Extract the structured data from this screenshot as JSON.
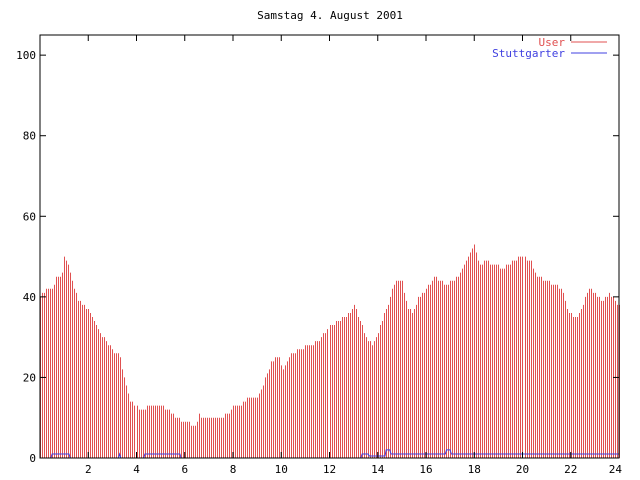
{
  "chart_data": {
    "type": "bar",
    "title": "Samstag 4. August 2001",
    "xlabel": "",
    "ylabel": "",
    "xlim": [
      0,
      24
    ],
    "ylim": [
      0,
      105
    ],
    "grid": false,
    "legend_position": "top-right",
    "x_ticks": [
      {
        "value": 2,
        "label": "2"
      },
      {
        "value": 4,
        "label": "4"
      },
      {
        "value": 6,
        "label": "6"
      },
      {
        "value": 8,
        "label": "8"
      },
      {
        "value": 10,
        "label": "10"
      },
      {
        "value": 12,
        "label": "12"
      },
      {
        "value": 14,
        "label": "14"
      },
      {
        "value": 16,
        "label": "16"
      },
      {
        "value": 18,
        "label": "18"
      },
      {
        "value": 20,
        "label": "20"
      },
      {
        "value": 22,
        "label": "22"
      },
      {
        "value": 24,
        "label": "24"
      }
    ],
    "y_ticks": [
      {
        "value": 0,
        "label": "0"
      },
      {
        "value": 20,
        "label": "20"
      },
      {
        "value": 40,
        "label": "40"
      },
      {
        "value": 60,
        "label": "60"
      },
      {
        "value": 80,
        "label": "80"
      },
      {
        "value": 100,
        "label": "100"
      }
    ],
    "series": [
      {
        "name": "User",
        "style": "impulses",
        "color": "#e05050",
        "key": [
          [
            0.0,
            40
          ],
          [
            0.3,
            42
          ],
          [
            0.5,
            42
          ],
          [
            0.7,
            45
          ],
          [
            0.9,
            45
          ],
          [
            1.0,
            50
          ],
          [
            1.2,
            47
          ],
          [
            1.4,
            42
          ],
          [
            1.6,
            39
          ],
          [
            2.0,
            37
          ],
          [
            2.3,
            33
          ],
          [
            2.6,
            30
          ],
          [
            2.9,
            28
          ],
          [
            3.1,
            26
          ],
          [
            3.3,
            26
          ],
          [
            3.5,
            20
          ],
          [
            3.7,
            15
          ],
          [
            3.9,
            13
          ],
          [
            4.2,
            12
          ],
          [
            4.5,
            13
          ],
          [
            5.0,
            13
          ],
          [
            5.3,
            12
          ],
          [
            5.6,
            10
          ],
          [
            6.0,
            9
          ],
          [
            6.4,
            8
          ],
          [
            6.6,
            11
          ],
          [
            6.7,
            10
          ],
          [
            7.5,
            10
          ],
          [
            7.8,
            11
          ],
          [
            8.0,
            13
          ],
          [
            8.3,
            13
          ],
          [
            8.6,
            15
          ],
          [
            9.0,
            15
          ],
          [
            9.3,
            19
          ],
          [
            9.6,
            24
          ],
          [
            9.9,
            25
          ],
          [
            10.1,
            22
          ],
          [
            10.4,
            26
          ],
          [
            10.8,
            27
          ],
          [
            11.2,
            28
          ],
          [
            11.6,
            29
          ],
          [
            12.0,
            33
          ],
          [
            12.4,
            34
          ],
          [
            12.8,
            36
          ],
          [
            13.0,
            38
          ],
          [
            13.2,
            35
          ],
          [
            13.5,
            30
          ],
          [
            13.8,
            28
          ],
          [
            14.1,
            33
          ],
          [
            14.4,
            38
          ],
          [
            14.7,
            44
          ],
          [
            15.0,
            44
          ],
          [
            15.2,
            38
          ],
          [
            15.4,
            36
          ],
          [
            15.7,
            40
          ],
          [
            16.0,
            42
          ],
          [
            16.4,
            45
          ],
          [
            16.8,
            43
          ],
          [
            17.2,
            44
          ],
          [
            17.5,
            47
          ],
          [
            17.8,
            51
          ],
          [
            18.0,
            53
          ],
          [
            18.2,
            48
          ],
          [
            18.5,
            49
          ],
          [
            18.8,
            48
          ],
          [
            19.2,
            47
          ],
          [
            19.6,
            49
          ],
          [
            20.0,
            50
          ],
          [
            20.3,
            49
          ],
          [
            20.6,
            45
          ],
          [
            21.0,
            44
          ],
          [
            21.3,
            43
          ],
          [
            21.6,
            42
          ],
          [
            21.9,
            36
          ],
          [
            22.2,
            35
          ],
          [
            22.5,
            38
          ],
          [
            22.7,
            42
          ],
          [
            23.0,
            41
          ],
          [
            23.3,
            39
          ],
          [
            23.6,
            41
          ],
          [
            23.9,
            38
          ],
          [
            24.0,
            38
          ]
        ]
      },
      {
        "name": "Stuttgarter",
        "style": "line",
        "color": "#4040e0",
        "x": [
          0.0,
          0.45,
          0.5,
          1.2,
          1.25,
          3.25,
          3.3,
          3.35,
          4.3,
          4.35,
          5.8,
          5.85,
          13.3,
          13.35,
          13.6,
          13.65,
          14.3,
          14.35,
          14.5,
          14.55,
          16.8,
          16.85,
          17.0,
          17.05,
          24.0
        ],
        "y": [
          0,
          0,
          1,
          1,
          0,
          0,
          1,
          0,
          0,
          1,
          1,
          0,
          0,
          1,
          1,
          0.5,
          0.5,
          2,
          2,
          1,
          1,
          2,
          2,
          1,
          1
        ]
      }
    ]
  }
}
